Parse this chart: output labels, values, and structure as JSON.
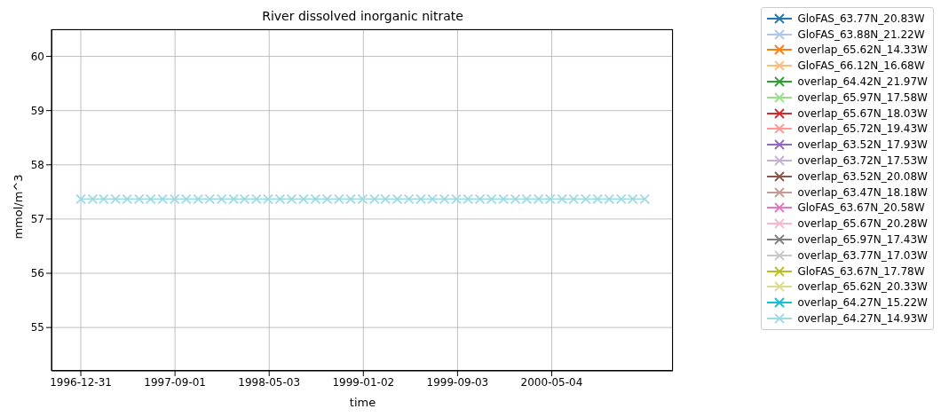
{
  "chart_data": {
    "type": "line",
    "title": "River dissolved inorganic nitrate",
    "xlabel": "time",
    "ylabel": "mmol/m^3",
    "x": [
      "1996-12-31",
      "1997-01-31",
      "1997-02-28",
      "1997-03-31",
      "1997-04-30",
      "1997-05-31",
      "1997-06-30",
      "1997-07-31",
      "1997-08-31",
      "1997-09-30",
      "1997-10-31",
      "1997-11-30",
      "1997-12-31",
      "1998-01-31",
      "1998-02-28",
      "1998-03-31",
      "1998-04-30",
      "1998-05-31",
      "1998-06-30",
      "1998-07-31",
      "1998-08-31",
      "1998-09-30",
      "1998-10-31",
      "1998-11-30",
      "1998-12-31",
      "1999-01-31",
      "1999-02-28",
      "1999-03-31",
      "1999-04-30",
      "1999-05-31",
      "1999-06-30",
      "1999-07-31",
      "1999-08-31",
      "1999-09-30",
      "1999-10-31",
      "1999-11-30",
      "1999-12-31",
      "2000-01-31",
      "2000-02-29",
      "2000-03-31",
      "2000-04-30",
      "2000-05-31",
      "2000-06-30",
      "2000-07-31",
      "2000-08-31",
      "2000-09-30",
      "2000-10-31",
      "2000-11-30",
      "2000-12-31"
    ],
    "xlim": [
      "1996-10-16",
      "2001-03-14"
    ],
    "xticks": [
      "1996-12-31",
      "1997-09-01",
      "1998-05-03",
      "1999-01-02",
      "1999-09-03",
      "2000-05-04"
    ],
    "ylim": [
      54.2,
      60.5
    ],
    "yticks": [
      55,
      56,
      57,
      58,
      59,
      60
    ],
    "grid": true,
    "legend": "right",
    "marker": "cross",
    "line_style": "solid",
    "series": [
      {
        "name": "GloFAS_63.77N_20.83W",
        "color": "#1f77b4",
        "values": [
          null,
          null,
          null,
          null,
          null,
          null,
          null,
          null,
          null,
          null,
          null,
          null,
          null,
          null,
          null,
          null,
          null,
          null,
          null,
          null,
          null,
          null,
          null,
          null,
          null,
          null,
          null,
          null,
          null,
          null,
          null,
          null,
          null,
          null,
          null,
          null,
          null,
          null,
          null,
          null,
          null,
          null,
          null,
          null,
          null,
          null,
          null,
          null,
          null
        ]
      },
      {
        "name": "GloFAS_63.88N_21.22W",
        "color": "#aec7e8",
        "values": [
          null,
          null,
          null,
          null,
          null,
          null,
          null,
          null,
          null,
          null,
          null,
          null,
          null,
          null,
          null,
          null,
          null,
          null,
          null,
          null,
          null,
          null,
          null,
          null,
          null,
          null,
          null,
          null,
          null,
          null,
          null,
          null,
          null,
          null,
          null,
          null,
          null,
          null,
          null,
          null,
          null,
          null,
          null,
          null,
          null,
          null,
          null,
          null,
          null
        ]
      },
      {
        "name": "overlap_65.62N_14.33W",
        "color": "#ff7f0e",
        "values": [
          null,
          null,
          null,
          null,
          null,
          null,
          null,
          null,
          null,
          null,
          null,
          null,
          null,
          null,
          null,
          null,
          null,
          null,
          null,
          null,
          null,
          null,
          null,
          null,
          null,
          null,
          null,
          null,
          null,
          null,
          null,
          null,
          null,
          null,
          null,
          null,
          null,
          null,
          null,
          null,
          null,
          null,
          null,
          null,
          null,
          null,
          null,
          null,
          null
        ]
      },
      {
        "name": "GloFAS_66.12N_16.68W",
        "color": "#ffbb78",
        "values": [
          null,
          null,
          null,
          null,
          null,
          null,
          null,
          null,
          null,
          null,
          null,
          null,
          null,
          null,
          null,
          null,
          null,
          null,
          null,
          null,
          null,
          null,
          null,
          null,
          null,
          null,
          null,
          null,
          null,
          null,
          null,
          null,
          null,
          null,
          null,
          null,
          null,
          null,
          null,
          null,
          null,
          null,
          null,
          null,
          null,
          null,
          null,
          null,
          null
        ]
      },
      {
        "name": "overlap_64.42N_21.97W",
        "color": "#2ca02c",
        "values": [
          null,
          null,
          null,
          null,
          null,
          null,
          null,
          null,
          null,
          null,
          null,
          null,
          null,
          null,
          null,
          null,
          null,
          null,
          null,
          null,
          null,
          null,
          null,
          null,
          null,
          null,
          null,
          null,
          null,
          null,
          null,
          null,
          null,
          null,
          null,
          null,
          null,
          null,
          null,
          null,
          null,
          null,
          null,
          null,
          null,
          null,
          null,
          null,
          null
        ]
      },
      {
        "name": "overlap_65.97N_17.58W",
        "color": "#98df8a",
        "values": [
          null,
          null,
          null,
          null,
          null,
          null,
          null,
          null,
          null,
          null,
          null,
          null,
          null,
          null,
          null,
          null,
          null,
          null,
          null,
          null,
          null,
          null,
          null,
          null,
          null,
          null,
          null,
          null,
          null,
          null,
          null,
          null,
          null,
          null,
          null,
          null,
          null,
          null,
          null,
          null,
          null,
          null,
          null,
          null,
          null,
          null,
          null,
          null,
          null
        ]
      },
      {
        "name": "overlap_65.67N_18.03W",
        "color": "#d62728",
        "values": [
          null,
          null,
          null,
          null,
          null,
          null,
          null,
          null,
          null,
          null,
          null,
          null,
          null,
          null,
          null,
          null,
          null,
          null,
          null,
          null,
          null,
          null,
          null,
          null,
          null,
          null,
          null,
          null,
          null,
          null,
          null,
          null,
          null,
          null,
          null,
          null,
          null,
          null,
          null,
          null,
          null,
          null,
          null,
          null,
          null,
          null,
          null,
          null,
          null
        ]
      },
      {
        "name": "overlap_65.72N_19.43W",
        "color": "#ff9896",
        "values": [
          null,
          null,
          null,
          null,
          null,
          null,
          null,
          null,
          null,
          null,
          null,
          null,
          null,
          null,
          null,
          null,
          null,
          null,
          null,
          null,
          null,
          null,
          null,
          null,
          null,
          null,
          null,
          null,
          null,
          null,
          null,
          null,
          null,
          null,
          null,
          null,
          null,
          null,
          null,
          null,
          null,
          null,
          null,
          null,
          null,
          null,
          null,
          null,
          null
        ]
      },
      {
        "name": "overlap_63.52N_17.93W",
        "color": "#9467bd",
        "values": [
          null,
          null,
          null,
          null,
          null,
          null,
          null,
          null,
          null,
          null,
          null,
          null,
          null,
          null,
          null,
          null,
          null,
          null,
          null,
          null,
          null,
          null,
          null,
          null,
          null,
          null,
          null,
          null,
          null,
          null,
          null,
          null,
          null,
          null,
          null,
          null,
          null,
          null,
          null,
          null,
          null,
          null,
          null,
          null,
          null,
          null,
          null,
          null,
          null
        ]
      },
      {
        "name": "overlap_63.72N_17.53W",
        "color": "#c5b0d5",
        "values": [
          null,
          null,
          null,
          null,
          null,
          null,
          null,
          null,
          null,
          null,
          null,
          null,
          null,
          null,
          null,
          null,
          null,
          null,
          null,
          null,
          null,
          null,
          null,
          null,
          null,
          null,
          null,
          null,
          null,
          null,
          null,
          null,
          null,
          null,
          null,
          null,
          null,
          null,
          null,
          null,
          null,
          null,
          null,
          null,
          null,
          null,
          null,
          null,
          null
        ]
      },
      {
        "name": "overlap_63.52N_20.08W",
        "color": "#8c564b",
        "values": [
          null,
          null,
          null,
          null,
          null,
          null,
          null,
          null,
          null,
          null,
          null,
          null,
          null,
          null,
          null,
          null,
          null,
          null,
          null,
          null,
          null,
          null,
          null,
          null,
          null,
          null,
          null,
          null,
          null,
          null,
          null,
          null,
          null,
          null,
          null,
          null,
          null,
          null,
          null,
          null,
          null,
          null,
          null,
          null,
          null,
          null,
          null,
          null,
          null
        ]
      },
      {
        "name": "overlap_63.47N_18.18W",
        "color": "#c49c94",
        "values": [
          null,
          null,
          null,
          null,
          null,
          null,
          null,
          null,
          null,
          null,
          null,
          null,
          null,
          null,
          null,
          null,
          null,
          null,
          null,
          null,
          null,
          null,
          null,
          null,
          null,
          null,
          null,
          null,
          null,
          null,
          null,
          null,
          null,
          null,
          null,
          null,
          null,
          null,
          null,
          null,
          null,
          null,
          null,
          null,
          null,
          null,
          null,
          null,
          null
        ]
      },
      {
        "name": "GloFAS_63.67N_20.58W",
        "color": "#e377c2",
        "values": [
          null,
          null,
          null,
          null,
          null,
          null,
          null,
          null,
          null,
          null,
          null,
          null,
          null,
          null,
          null,
          null,
          null,
          null,
          null,
          null,
          null,
          null,
          null,
          null,
          null,
          null,
          null,
          null,
          null,
          null,
          null,
          null,
          null,
          null,
          null,
          null,
          null,
          null,
          null,
          null,
          null,
          null,
          null,
          null,
          null,
          null,
          null,
          null,
          null
        ]
      },
      {
        "name": "overlap_65.67N_20.28W",
        "color": "#f7b6d2",
        "values": [
          null,
          null,
          null,
          null,
          null,
          null,
          null,
          null,
          null,
          null,
          null,
          null,
          null,
          null,
          null,
          null,
          null,
          null,
          null,
          null,
          null,
          null,
          null,
          null,
          null,
          null,
          null,
          null,
          null,
          null,
          null,
          null,
          null,
          null,
          null,
          null,
          null,
          null,
          null,
          null,
          null,
          null,
          null,
          null,
          null,
          null,
          null,
          null,
          null
        ]
      },
      {
        "name": "overlap_65.97N_17.43W",
        "color": "#7f7f7f",
        "values": [
          null,
          null,
          null,
          null,
          null,
          null,
          null,
          null,
          null,
          null,
          null,
          null,
          null,
          null,
          null,
          null,
          null,
          null,
          null,
          null,
          null,
          null,
          null,
          null,
          null,
          null,
          null,
          null,
          null,
          null,
          null,
          null,
          null,
          null,
          null,
          null,
          null,
          null,
          null,
          null,
          null,
          null,
          null,
          null,
          null,
          null,
          null,
          null,
          null
        ]
      },
      {
        "name": "overlap_63.77N_17.03W",
        "color": "#c7c7c7",
        "values": [
          null,
          null,
          null,
          null,
          null,
          null,
          null,
          null,
          null,
          null,
          null,
          null,
          null,
          null,
          null,
          null,
          null,
          null,
          null,
          null,
          null,
          null,
          null,
          null,
          null,
          null,
          null,
          null,
          null,
          null,
          null,
          null,
          null,
          null,
          null,
          null,
          null,
          null,
          null,
          null,
          null,
          null,
          null,
          null,
          null,
          null,
          null,
          null,
          null
        ]
      },
      {
        "name": "GloFAS_63.67N_17.78W",
        "color": "#bcbd22",
        "values": [
          null,
          null,
          null,
          null,
          null,
          null,
          null,
          null,
          null,
          null,
          null,
          null,
          null,
          null,
          null,
          null,
          null,
          null,
          null,
          null,
          null,
          null,
          null,
          null,
          null,
          null,
          null,
          null,
          null,
          null,
          null,
          null,
          null,
          null,
          null,
          null,
          null,
          null,
          null,
          null,
          null,
          null,
          null,
          null,
          null,
          null,
          null,
          null,
          null
        ]
      },
      {
        "name": "overlap_65.62N_20.33W",
        "color": "#dbdb8d",
        "values": [
          null,
          null,
          null,
          null,
          null,
          null,
          null,
          null,
          null,
          null,
          null,
          null,
          null,
          null,
          null,
          null,
          null,
          null,
          null,
          null,
          null,
          null,
          null,
          null,
          null,
          null,
          null,
          null,
          null,
          null,
          null,
          null,
          null,
          null,
          null,
          null,
          null,
          null,
          null,
          null,
          null,
          null,
          null,
          null,
          null,
          null,
          null,
          null,
          null
        ]
      },
      {
        "name": "overlap_64.27N_15.22W",
        "color": "#17becf",
        "values": [
          null,
          null,
          null,
          null,
          null,
          null,
          null,
          null,
          null,
          null,
          null,
          null,
          null,
          null,
          null,
          null,
          null,
          null,
          null,
          null,
          null,
          null,
          null,
          null,
          null,
          null,
          null,
          null,
          null,
          null,
          null,
          null,
          null,
          null,
          null,
          null,
          null,
          null,
          null,
          null,
          null,
          null,
          null,
          null,
          null,
          null,
          null,
          null,
          null
        ]
      },
      {
        "name": "overlap_64.27N_14.93W",
        "color": "#9edae5",
        "values": [
          57.37,
          57.37,
          57.37,
          57.37,
          57.37,
          57.37,
          57.37,
          57.37,
          57.37,
          57.37,
          57.37,
          57.37,
          57.37,
          57.37,
          57.37,
          57.37,
          57.37,
          57.37,
          57.37,
          57.37,
          57.37,
          57.37,
          57.37,
          57.37,
          57.37,
          57.37,
          57.37,
          57.37,
          57.37,
          57.37,
          57.37,
          57.37,
          57.37,
          57.37,
          57.37,
          57.37,
          57.37,
          57.37,
          57.37,
          57.37,
          57.37,
          57.37,
          57.37,
          57.37,
          57.37,
          57.37,
          57.37,
          57.37,
          57.37
        ]
      }
    ]
  }
}
